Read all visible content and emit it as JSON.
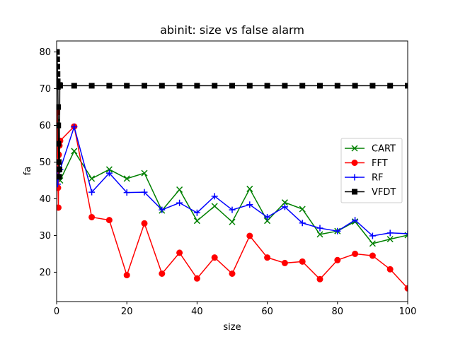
{
  "chart_data": {
    "type": "line",
    "title": "abinit: size vs false alarm",
    "xlabel": "size",
    "ylabel": "fa",
    "xlim": [
      0,
      100
    ],
    "ylim": [
      12,
      83
    ],
    "xticks": [
      "0",
      "20",
      "40",
      "60",
      "80",
      "100"
    ],
    "yticks": [
      "20",
      "30",
      "40",
      "50",
      "60",
      "70",
      "80"
    ],
    "legend_position": "center-right",
    "grid": false,
    "series": [
      {
        "name": "CART",
        "color": "#008000",
        "marker": "x",
        "points": [
          [
            0.1,
            61
          ],
          [
            0.2,
            55
          ],
          [
            0.3,
            52
          ],
          [
            0.5,
            48
          ],
          [
            1,
            45
          ],
          [
            5,
            53
          ],
          [
            10,
            45.5
          ],
          [
            15,
            48
          ],
          [
            20,
            45.5
          ],
          [
            25,
            47
          ],
          [
            30,
            36.8
          ],
          [
            35,
            42.5
          ],
          [
            40,
            34
          ],
          [
            45,
            38
          ],
          [
            50,
            33.7
          ],
          [
            55,
            42.7
          ],
          [
            60,
            34
          ],
          [
            65,
            39
          ],
          [
            70,
            37.2
          ],
          [
            75,
            30.3
          ],
          [
            80,
            31.2
          ],
          [
            85,
            33.8
          ],
          [
            90,
            27.8
          ],
          [
            95,
            29
          ],
          [
            100,
            30.1
          ]
        ]
      },
      {
        "name": "FFT",
        "color": "#ff0000",
        "marker": "o",
        "points": [
          [
            0.1,
            63.5
          ],
          [
            0.2,
            60
          ],
          [
            0.3,
            50
          ],
          [
            0.4,
            43
          ],
          [
            0.5,
            37.6
          ],
          [
            0.6,
            52
          ],
          [
            0.8,
            54.5
          ],
          [
            1,
            55.8
          ],
          [
            5,
            59.7
          ],
          [
            10,
            35
          ],
          [
            15,
            34.2
          ],
          [
            20,
            19.2
          ],
          [
            25,
            33.3
          ],
          [
            30,
            19.6
          ],
          [
            35,
            25.3
          ],
          [
            40,
            18.3
          ],
          [
            45,
            24
          ],
          [
            50,
            19.6
          ],
          [
            55,
            29.9
          ],
          [
            60,
            24
          ],
          [
            65,
            22.5
          ],
          [
            70,
            22.9
          ],
          [
            75,
            18.1
          ],
          [
            80,
            23.3
          ],
          [
            85,
            25
          ],
          [
            90,
            24.5
          ],
          [
            95,
            20.8
          ],
          [
            100,
            15.6
          ]
        ]
      },
      {
        "name": "RF",
        "color": "#0000ff",
        "marker": "+",
        "points": [
          [
            0.1,
            48
          ],
          [
            0.3,
            44
          ],
          [
            0.5,
            46
          ],
          [
            1,
            48
          ],
          [
            5,
            59.6
          ],
          [
            10,
            41.8
          ],
          [
            15,
            47
          ],
          [
            20,
            41.7
          ],
          [
            25,
            41.8
          ],
          [
            30,
            37
          ],
          [
            35,
            38.9
          ],
          [
            40,
            36.2
          ],
          [
            45,
            40.7
          ],
          [
            50,
            37
          ],
          [
            55,
            38.4
          ],
          [
            60,
            35
          ],
          [
            65,
            37.8
          ],
          [
            70,
            33.4
          ],
          [
            75,
            32
          ],
          [
            80,
            31.2
          ],
          [
            85,
            34.2
          ],
          [
            90,
            29.9
          ],
          [
            95,
            30.7
          ],
          [
            100,
            30.5
          ]
        ]
      },
      {
        "name": "VFDT",
        "color": "#000000",
        "marker": "s",
        "points": [
          [
            0.1,
            80
          ],
          [
            0.15,
            78
          ],
          [
            0.2,
            76
          ],
          [
            0.25,
            74
          ],
          [
            0.3,
            72
          ],
          [
            0.35,
            70.5
          ],
          [
            0.4,
            65
          ],
          [
            0.45,
            60
          ],
          [
            0.5,
            55
          ],
          [
            0.6,
            50
          ],
          [
            0.7,
            46
          ],
          [
            0.8,
            48
          ],
          [
            0.9,
            71
          ],
          [
            1,
            70.8
          ],
          [
            5,
            70.8
          ],
          [
            10,
            70.8
          ],
          [
            15,
            70.8
          ],
          [
            20,
            70.8
          ],
          [
            25,
            70.8
          ],
          [
            30,
            70.8
          ],
          [
            35,
            70.8
          ],
          [
            40,
            70.8
          ],
          [
            45,
            70.8
          ],
          [
            50,
            70.8
          ],
          [
            55,
            70.8
          ],
          [
            60,
            70.8
          ],
          [
            65,
            70.8
          ],
          [
            70,
            70.8
          ],
          [
            75,
            70.8
          ],
          [
            80,
            70.8
          ],
          [
            85,
            70.8
          ],
          [
            90,
            70.8
          ],
          [
            95,
            70.8
          ],
          [
            100,
            70.8
          ]
        ]
      }
    ]
  }
}
